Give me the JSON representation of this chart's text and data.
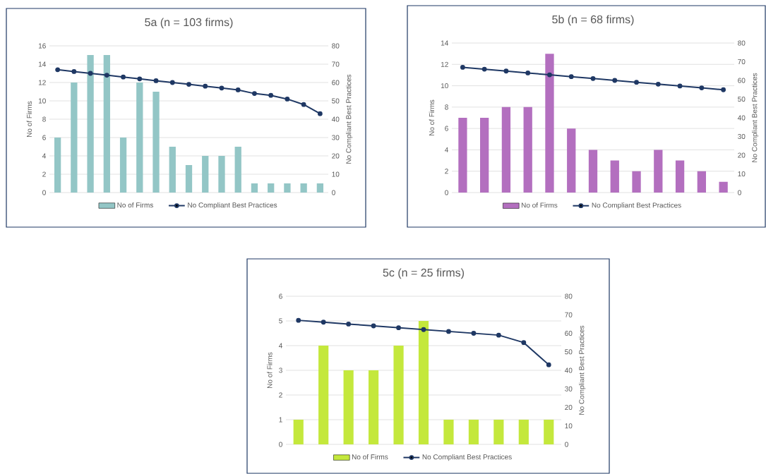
{
  "chart_data": [
    {
      "type": "bar",
      "title": "5a (n = 103 firms)",
      "ylabel": "No of Firms",
      "y2label": "No Compliant Best Practices",
      "categories": [
        null,
        null,
        null,
        null,
        null,
        null,
        null,
        null,
        null,
        null,
        null,
        null,
        null,
        null,
        null,
        null,
        null
      ],
      "series": [
        {
          "name": "No of Firms",
          "color": "#93c6c6",
          "values": [
            6,
            12,
            15,
            15,
            6,
            12,
            11,
            5,
            3,
            4,
            4,
            5,
            1,
            1,
            1,
            1,
            1
          ]
        },
        {
          "name": "No Compliant Best Practices",
          "type": "line",
          "axis": "y2",
          "color": "#1f3864",
          "values": [
            67,
            66,
            65,
            64,
            63,
            62,
            61,
            60,
            59,
            58,
            57,
            56,
            54,
            53,
            51,
            48,
            43
          ]
        }
      ],
      "ylim": [
        0,
        16
      ],
      "yticks": [
        0,
        2,
        4,
        6,
        8,
        10,
        12,
        14,
        16
      ],
      "y2lim": [
        0,
        80
      ],
      "y2ticks": [
        0,
        10,
        20,
        30,
        40,
        50,
        60,
        70,
        80
      ],
      "grid": "y",
      "legend": "bottom",
      "marker": "circle",
      "line_style": "solid"
    },
    {
      "type": "bar",
      "title": "5b (n = 68 firms)",
      "ylabel": "No of Firms",
      "y2label": "No Compliant Best Practices",
      "categories": [
        null,
        null,
        null,
        null,
        null,
        null,
        null,
        null,
        null,
        null,
        null,
        null,
        null
      ],
      "series": [
        {
          "name": "No of Firms",
          "color": "#b36fbf",
          "values": [
            7,
            7,
            8,
            8,
            13,
            6,
            4,
            3,
            2,
            4,
            3,
            2,
            1
          ]
        },
        {
          "name": "No Compliant Best Practices",
          "type": "line",
          "axis": "y2",
          "color": "#1f3864",
          "values": [
            67,
            66,
            65,
            64,
            63,
            62,
            61,
            60,
            59,
            58,
            57,
            56,
            55
          ]
        }
      ],
      "ylim": [
        0,
        14
      ],
      "yticks": [
        0,
        2,
        4,
        6,
        8,
        10,
        12,
        14
      ],
      "y2lim": [
        0,
        80
      ],
      "y2ticks": [
        0,
        10,
        20,
        30,
        40,
        50,
        60,
        70,
        80
      ],
      "grid": "y",
      "legend": "bottom",
      "marker": "circle",
      "line_style": "solid"
    },
    {
      "type": "bar",
      "title": "5c (n = 25 firms)",
      "ylabel": "No of Firms",
      "y2label": "No Compliant Best Practices",
      "categories": [
        null,
        null,
        null,
        null,
        null,
        null,
        null,
        null,
        null,
        null,
        null
      ],
      "series": [
        {
          "name": "No of Firms",
          "color": "#c4e83c",
          "values": [
            1,
            4,
            3,
            3,
            4,
            5,
            1,
            1,
            1,
            1,
            1
          ]
        },
        {
          "name": "No Compliant Best Practices",
          "type": "line",
          "axis": "y2",
          "color": "#1f3864",
          "values": [
            67,
            66,
            65,
            64,
            63,
            62,
            61,
            60,
            59,
            55,
            43
          ]
        }
      ],
      "ylim": [
        0,
        6
      ],
      "yticks": [
        0,
        1,
        2,
        3,
        4,
        5,
        6
      ],
      "y2lim": [
        0,
        80
      ],
      "y2ticks": [
        0,
        10,
        20,
        30,
        40,
        50,
        60,
        70,
        80
      ],
      "grid": "y",
      "legend": "bottom",
      "marker": "circle",
      "line_style": "solid"
    }
  ]
}
